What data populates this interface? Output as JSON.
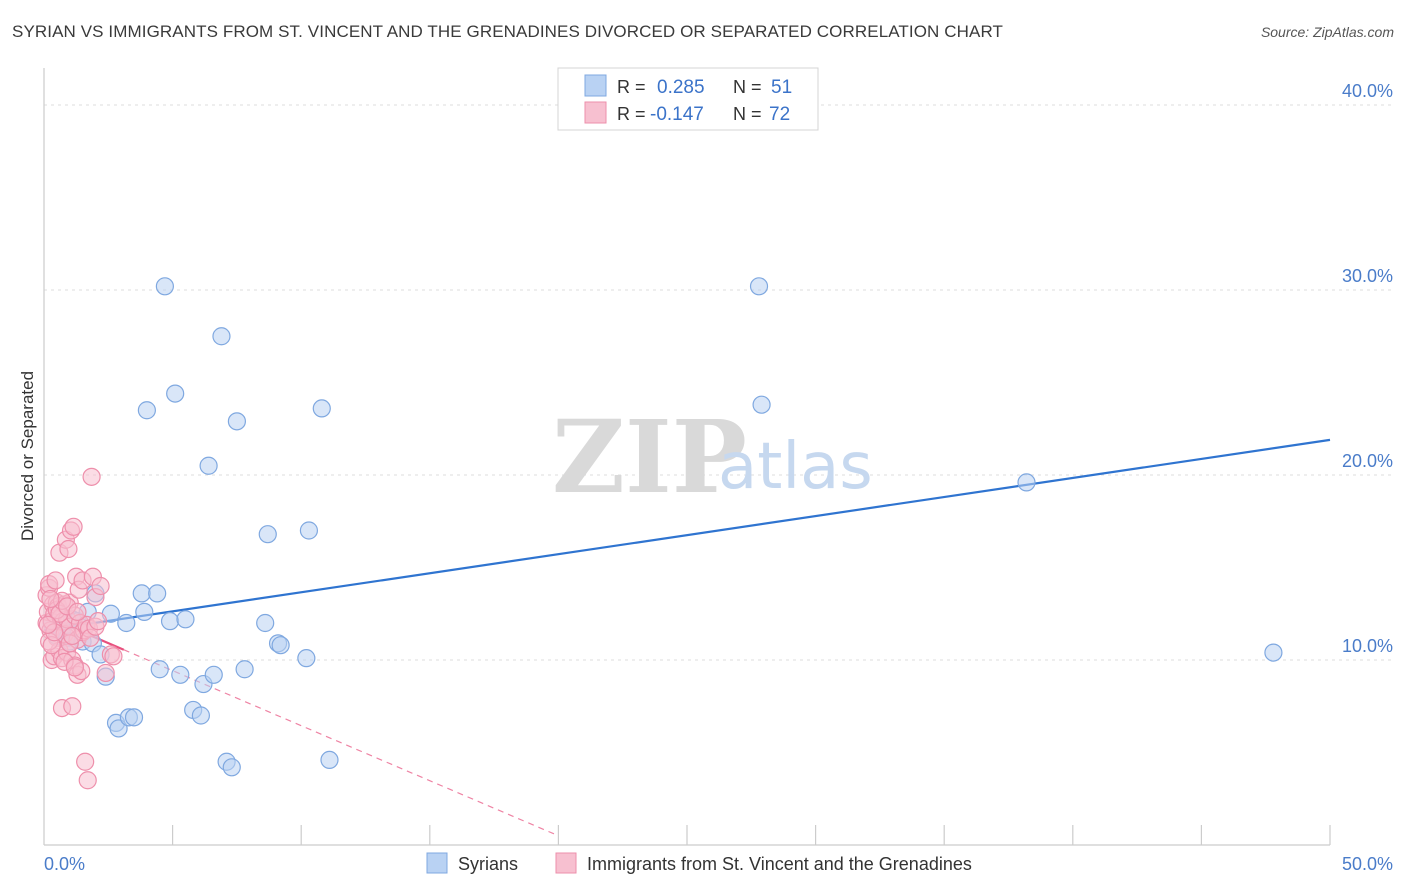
{
  "header": {
    "title": "SYRIAN VS IMMIGRANTS FROM ST. VINCENT AND THE GRENADINES DIVORCED OR SEPARATED CORRELATION CHART",
    "source": "Source: ZipAtlas.com"
  },
  "watermark": {
    "zip": "ZIP",
    "atlas": "atlas"
  },
  "colors": {
    "blue_fill": "#b9d2f3",
    "blue_stroke": "#7fa8e0",
    "blue_line": "#2f74d0",
    "pink_fill": "#f7c0d0",
    "pink_stroke": "#ee8fab",
    "pink_line": "#e8507e",
    "grid": "#dcdcdc",
    "axis": "#cccccc",
    "tick_text": "#4a7cc9"
  },
  "chart_data": {
    "type": "scatter",
    "title": "SYRIAN VS IMMIGRANTS FROM ST. VINCENT AND THE GRENADINES DIVORCED OR SEPARATED CORRELATION CHART",
    "xlabel": "",
    "ylabel": "Divorced or Separated",
    "xlim": [
      0,
      50
    ],
    "ylim": [
      0,
      42
    ],
    "x_tick_labels": {
      "min": "0.0%",
      "max": "50.0%"
    },
    "y_ticks": [
      {
        "value": 10,
        "label": "10.0%"
      },
      {
        "value": 20,
        "label": "20.0%"
      },
      {
        "value": 30,
        "label": "30.0%"
      },
      {
        "value": 40,
        "label": "40.0%"
      }
    ],
    "x_minor_ticks": [
      5,
      10,
      15,
      20,
      25,
      30,
      35,
      40,
      45,
      50
    ],
    "legend": [
      {
        "series": "Syrians",
        "r_label": "R =",
        "r_value": "0.285",
        "n_label": "N =",
        "n_value": "51"
      },
      {
        "series": "Immigrants from St. Vincent and the Grenadines",
        "r_label": "R =",
        "r_value": "-0.147",
        "n_label": "N =",
        "n_value": "72"
      }
    ],
    "series": [
      {
        "name": "Syrians",
        "color": "blue",
        "trend": {
          "x0": 0.0,
          "y0": 11.6,
          "x1": 50.0,
          "y1": 21.9,
          "solid_until": 50.0
        },
        "points": [
          [
            0.3,
            12.0
          ],
          [
            0.5,
            11.3
          ],
          [
            0.7,
            11.6
          ],
          [
            0.9,
            11.2
          ],
          [
            1.1,
            12.2
          ],
          [
            1.3,
            12.1
          ],
          [
            1.5,
            11.0
          ],
          [
            1.7,
            12.6
          ],
          [
            1.9,
            10.9
          ],
          [
            2.0,
            13.6
          ],
          [
            2.2,
            10.3
          ],
          [
            2.4,
            9.1
          ],
          [
            2.6,
            12.5
          ],
          [
            2.8,
            6.6
          ],
          [
            2.9,
            6.3
          ],
          [
            3.2,
            12.0
          ],
          [
            3.3,
            6.9
          ],
          [
            3.5,
            6.9
          ],
          [
            3.8,
            13.6
          ],
          [
            3.9,
            12.6
          ],
          [
            4.0,
            23.5
          ],
          [
            4.4,
            13.6
          ],
          [
            4.5,
            9.5
          ],
          [
            4.7,
            30.2
          ],
          [
            4.9,
            12.1
          ],
          [
            5.1,
            24.4
          ],
          [
            5.3,
            9.2
          ],
          [
            5.5,
            12.2
          ],
          [
            5.8,
            7.3
          ],
          [
            6.1,
            7.0
          ],
          [
            6.2,
            8.7
          ],
          [
            6.4,
            20.5
          ],
          [
            6.6,
            9.2
          ],
          [
            6.9,
            27.5
          ],
          [
            7.1,
            4.5
          ],
          [
            7.3,
            4.2
          ],
          [
            7.5,
            22.9
          ],
          [
            7.8,
            9.5
          ],
          [
            8.6,
            12.0
          ],
          [
            8.7,
            16.8
          ],
          [
            9.1,
            10.9
          ],
          [
            9.2,
            10.8
          ],
          [
            10.2,
            10.1
          ],
          [
            10.3,
            17.0
          ],
          [
            10.8,
            23.6
          ],
          [
            11.1,
            4.6
          ],
          [
            27.8,
            30.2
          ],
          [
            27.9,
            23.8
          ],
          [
            38.2,
            19.6
          ],
          [
            47.8,
            10.4
          ],
          [
            1.0,
            11.0
          ]
        ]
      },
      {
        "name": "Immigrants from St. Vincent and the Grenadines",
        "color": "pink",
        "trend": {
          "x0": 0.0,
          "y0": 12.4,
          "x1": 20.0,
          "y1": 0.5,
          "solid_until": 3.1
        },
        "points": [
          [
            0.1,
            12.0
          ],
          [
            0.1,
            13.5
          ],
          [
            0.15,
            12.6
          ],
          [
            0.2,
            13.9
          ],
          [
            0.2,
            14.1
          ],
          [
            0.25,
            11.6
          ],
          [
            0.3,
            10.0
          ],
          [
            0.3,
            12.1
          ],
          [
            0.35,
            13.0
          ],
          [
            0.4,
            10.2
          ],
          [
            0.4,
            12.5
          ],
          [
            0.45,
            14.3
          ],
          [
            0.5,
            13.1
          ],
          [
            0.5,
            11.2
          ],
          [
            0.55,
            12.9
          ],
          [
            0.6,
            10.5
          ],
          [
            0.6,
            15.8
          ],
          [
            0.65,
            12.3
          ],
          [
            0.7,
            7.4
          ],
          [
            0.7,
            10.1
          ],
          [
            0.75,
            12.1
          ],
          [
            0.8,
            13.0
          ],
          [
            0.8,
            11.4
          ],
          [
            0.85,
            16.5
          ],
          [
            0.9,
            12.2
          ],
          [
            0.9,
            10.4
          ],
          [
            0.95,
            16.0
          ],
          [
            1.0,
            11.8
          ],
          [
            1.0,
            13.1
          ],
          [
            1.05,
            17.0
          ],
          [
            1.1,
            7.5
          ],
          [
            1.1,
            10.0
          ],
          [
            1.15,
            17.2
          ],
          [
            1.2,
            12.4
          ],
          [
            1.2,
            9.7
          ],
          [
            1.25,
            14.5
          ],
          [
            1.3,
            11.1
          ],
          [
            1.3,
            9.2
          ],
          [
            1.35,
            13.8
          ],
          [
            1.4,
            12.0
          ],
          [
            1.45,
            9.4
          ],
          [
            1.5,
            11.5
          ],
          [
            1.5,
            14.3
          ],
          [
            1.55,
            11.6
          ],
          [
            1.6,
            4.5
          ],
          [
            1.65,
            11.9
          ],
          [
            1.7,
            3.5
          ],
          [
            1.75,
            11.7
          ],
          [
            1.8,
            11.2
          ],
          [
            1.85,
            19.9
          ],
          [
            1.9,
            14.5
          ],
          [
            2.0,
            11.8
          ],
          [
            2.0,
            13.4
          ],
          [
            2.1,
            12.1
          ],
          [
            2.2,
            14.0
          ],
          [
            2.4,
            9.3
          ],
          [
            2.6,
            10.3
          ],
          [
            2.7,
            10.2
          ],
          [
            0.2,
            11.0
          ],
          [
            0.3,
            10.8
          ],
          [
            0.4,
            11.5
          ],
          [
            0.5,
            12.7
          ],
          [
            0.6,
            12.5
          ],
          [
            0.7,
            13.2
          ],
          [
            0.8,
            9.9
          ],
          [
            0.9,
            12.9
          ],
          [
            1.0,
            10.9
          ],
          [
            1.1,
            11.3
          ],
          [
            1.2,
            9.6
          ],
          [
            1.3,
            12.6
          ],
          [
            0.15,
            11.9
          ],
          [
            0.25,
            13.3
          ]
        ]
      }
    ]
  }
}
